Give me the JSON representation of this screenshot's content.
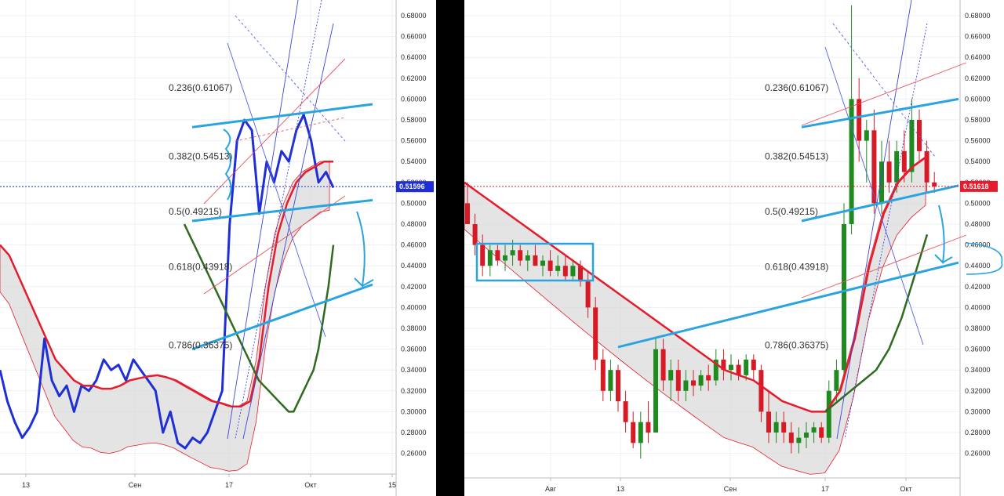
{
  "chart_data": [
    {
      "type": "line",
      "title": "",
      "xlabel": "",
      "ylabel": "",
      "ylim": [
        0.25,
        0.69
      ],
      "x_ticks": [
        "13",
        "Сен",
        "17",
        "Окт",
        "15"
      ],
      "y_ticks": [
        "0.68000",
        "0.66000",
        "0.64000",
        "0.62000",
        "0.60000",
        "0.58000",
        "0.56000",
        "0.54000",
        "0.52000",
        "0.50000",
        "0.48000",
        "0.46000",
        "0.44000",
        "0.42000",
        "0.40000",
        "0.38000",
        "0.36000",
        "0.34000",
        "0.32000",
        "0.30000",
        "0.28000",
        "0.26000"
      ],
      "last_price": {
        "label": "0.51596",
        "value": 0.51596,
        "color": "#1e2fd8"
      },
      "fib_levels": [
        {
          "label": "0.236(0.61067)",
          "value": 0.61067
        },
        {
          "label": "0.382(0.54513)",
          "value": 0.54513
        },
        {
          "label": "0.5(0.49215)",
          "value": 0.49215
        },
        {
          "label": "0.618(0.43918)",
          "value": 0.43918
        },
        {
          "label": "0.786(0.36375)",
          "value": 0.36375
        }
      ],
      "series": [
        {
          "values": [
            0.34,
            0.31,
            0.29,
            0.275,
            0.285,
            0.3,
            0.37,
            0.33,
            0.315,
            0.325,
            0.3,
            0.325,
            0.32,
            0.33,
            0.35,
            0.34,
            0.345,
            0.33,
            0.35,
            0.34,
            0.33,
            0.32,
            0.28,
            0.3,
            0.27,
            0.265,
            0.275,
            0.27,
            0.28,
            0.3,
            0.32,
            0.48,
            0.56,
            0.58,
            0.57,
            0.49,
            0.54,
            0.52,
            0.55,
            0.54,
            0.57,
            0.585,
            0.56,
            0.52,
            0.53,
            0.515
          ],
          "color": "#1e2fd8"
        },
        {
          "values": [
            0.46,
            0.45,
            0.43,
            0.41,
            0.39,
            0.37,
            0.35,
            0.34,
            0.33,
            0.325,
            0.325,
            0.322,
            0.322,
            0.325,
            0.33,
            0.332,
            0.334,
            0.335,
            0.333,
            0.33,
            0.325,
            0.32,
            0.315,
            0.31,
            0.308,
            0.305,
            0.305,
            0.31,
            0.35,
            0.42,
            0.47,
            0.5,
            0.52,
            0.53,
            0.535,
            0.54,
            0.54
          ],
          "color": "#e51c2c"
        },
        {
          "values": [
            0.48,
            0.47,
            0.46,
            0.45,
            0.44,
            0.43,
            0.42,
            0.41,
            0.4,
            0.39,
            0.38,
            0.37,
            0.36,
            0.35,
            0.34,
            0.33,
            0.325,
            0.32,
            0.315,
            0.31,
            0.305,
            0.3,
            0.3,
            0.31,
            0.32,
            0.33,
            0.34,
            0.36,
            0.39,
            0.42,
            0.46
          ],
          "color": "#2e6b1f"
        }
      ]
    },
    {
      "type": "candlestick",
      "title": "",
      "xlabel": "",
      "ylabel": "",
      "ylim": [
        0.25,
        0.69
      ],
      "x_ticks": [
        "Авг",
        "13",
        "Сен",
        "17",
        "Окт"
      ],
      "y_ticks": [
        "0.68000",
        "0.66000",
        "0.64000",
        "0.62000",
        "0.60000",
        "0.58000",
        "0.56000",
        "0.54000",
        "0.52000",
        "0.50000",
        "0.48000",
        "0.46000",
        "0.44000",
        "0.42000",
        "0.40000",
        "0.38000",
        "0.36000",
        "0.34000",
        "0.32000",
        "0.30000",
        "0.28000",
        "0.26000"
      ],
      "last_price": {
        "label": "0.51618",
        "value": 0.51618,
        "color": "#e51c2c"
      },
      "fib_levels": [
        {
          "label": "0.236(0.61067)",
          "value": 0.61067
        },
        {
          "label": "0.382(0.54513)",
          "value": 0.54513
        },
        {
          "label": "0.5(0.49215)",
          "value": 0.49215
        },
        {
          "label": "0.618(0.43918)",
          "value": 0.43918
        },
        {
          "label": "0.786(0.36375)",
          "value": 0.36375
        }
      ],
      "candles": [
        {
          "o": 0.5,
          "h": 0.52,
          "l": 0.48,
          "c": 0.48
        },
        {
          "o": 0.48,
          "h": 0.49,
          "l": 0.45,
          "c": 0.46
        },
        {
          "o": 0.46,
          "h": 0.47,
          "l": 0.43,
          "c": 0.44
        },
        {
          "o": 0.44,
          "h": 0.46,
          "l": 0.43,
          "c": 0.455
        },
        {
          "o": 0.455,
          "h": 0.46,
          "l": 0.44,
          "c": 0.445
        },
        {
          "o": 0.445,
          "h": 0.46,
          "l": 0.435,
          "c": 0.45
        },
        {
          "o": 0.45,
          "h": 0.465,
          "l": 0.44,
          "c": 0.455
        },
        {
          "o": 0.455,
          "h": 0.46,
          "l": 0.44,
          "c": 0.445
        },
        {
          "o": 0.445,
          "h": 0.455,
          "l": 0.435,
          "c": 0.45
        },
        {
          "o": 0.45,
          "h": 0.46,
          "l": 0.44,
          "c": 0.44
        },
        {
          "o": 0.44,
          "h": 0.45,
          "l": 0.43,
          "c": 0.445
        },
        {
          "o": 0.445,
          "h": 0.455,
          "l": 0.43,
          "c": 0.435
        },
        {
          "o": 0.435,
          "h": 0.45,
          "l": 0.43,
          "c": 0.44
        },
        {
          "o": 0.44,
          "h": 0.45,
          "l": 0.425,
          "c": 0.43
        },
        {
          "o": 0.43,
          "h": 0.445,
          "l": 0.425,
          "c": 0.44
        },
        {
          "o": 0.44,
          "h": 0.445,
          "l": 0.42,
          "c": 0.425
        },
        {
          "o": 0.425,
          "h": 0.435,
          "l": 0.39,
          "c": 0.4
        },
        {
          "o": 0.4,
          "h": 0.41,
          "l": 0.34,
          "c": 0.35
        },
        {
          "o": 0.35,
          "h": 0.36,
          "l": 0.31,
          "c": 0.32
        },
        {
          "o": 0.32,
          "h": 0.35,
          "l": 0.31,
          "c": 0.34
        },
        {
          "o": 0.34,
          "h": 0.345,
          "l": 0.3,
          "c": 0.31
        },
        {
          "o": 0.31,
          "h": 0.32,
          "l": 0.28,
          "c": 0.29
        },
        {
          "o": 0.29,
          "h": 0.3,
          "l": 0.265,
          "c": 0.27
        },
        {
          "o": 0.27,
          "h": 0.3,
          "l": 0.255,
          "c": 0.29
        },
        {
          "o": 0.29,
          "h": 0.31,
          "l": 0.27,
          "c": 0.28
        },
        {
          "o": 0.28,
          "h": 0.37,
          "l": 0.28,
          "c": 0.36
        },
        {
          "o": 0.36,
          "h": 0.37,
          "l": 0.32,
          "c": 0.33
        },
        {
          "o": 0.33,
          "h": 0.35,
          "l": 0.31,
          "c": 0.34
        },
        {
          "o": 0.34,
          "h": 0.35,
          "l": 0.31,
          "c": 0.32
        },
        {
          "o": 0.32,
          "h": 0.34,
          "l": 0.31,
          "c": 0.33
        },
        {
          "o": 0.33,
          "h": 0.34,
          "l": 0.315,
          "c": 0.325
        },
        {
          "o": 0.325,
          "h": 0.34,
          "l": 0.32,
          "c": 0.335
        },
        {
          "o": 0.335,
          "h": 0.345,
          "l": 0.32,
          "c": 0.33
        },
        {
          "o": 0.33,
          "h": 0.36,
          "l": 0.325,
          "c": 0.35
        },
        {
          "o": 0.35,
          "h": 0.36,
          "l": 0.33,
          "c": 0.34
        },
        {
          "o": 0.34,
          "h": 0.355,
          "l": 0.33,
          "c": 0.345
        },
        {
          "o": 0.345,
          "h": 0.35,
          "l": 0.33,
          "c": 0.335
        },
        {
          "o": 0.335,
          "h": 0.355,
          "l": 0.33,
          "c": 0.35
        },
        {
          "o": 0.35,
          "h": 0.355,
          "l": 0.33,
          "c": 0.34
        },
        {
          "o": 0.34,
          "h": 0.345,
          "l": 0.29,
          "c": 0.3
        },
        {
          "o": 0.3,
          "h": 0.32,
          "l": 0.27,
          "c": 0.28
        },
        {
          "o": 0.28,
          "h": 0.3,
          "l": 0.27,
          "c": 0.29
        },
        {
          "o": 0.29,
          "h": 0.3,
          "l": 0.27,
          "c": 0.28
        },
        {
          "o": 0.28,
          "h": 0.29,
          "l": 0.26,
          "c": 0.27
        },
        {
          "o": 0.27,
          "h": 0.285,
          "l": 0.26,
          "c": 0.275
        },
        {
          "o": 0.275,
          "h": 0.29,
          "l": 0.265,
          "c": 0.28
        },
        {
          "o": 0.28,
          "h": 0.29,
          "l": 0.27,
          "c": 0.285
        },
        {
          "o": 0.285,
          "h": 0.29,
          "l": 0.27,
          "c": 0.275
        },
        {
          "o": 0.275,
          "h": 0.33,
          "l": 0.27,
          "c": 0.32
        },
        {
          "o": 0.32,
          "h": 0.35,
          "l": 0.31,
          "c": 0.34
        },
        {
          "o": 0.34,
          "h": 0.5,
          "l": 0.33,
          "c": 0.48
        },
        {
          "o": 0.48,
          "h": 0.69,
          "l": 0.47,
          "c": 0.6
        },
        {
          "o": 0.6,
          "h": 0.62,
          "l": 0.54,
          "c": 0.56
        },
        {
          "o": 0.56,
          "h": 0.58,
          "l": 0.52,
          "c": 0.57
        },
        {
          "o": 0.57,
          "h": 0.59,
          "l": 0.49,
          "c": 0.5
        },
        {
          "o": 0.5,
          "h": 0.56,
          "l": 0.49,
          "c": 0.54
        },
        {
          "o": 0.54,
          "h": 0.56,
          "l": 0.51,
          "c": 0.52
        },
        {
          "o": 0.52,
          "h": 0.56,
          "l": 0.51,
          "c": 0.55
        },
        {
          "o": 0.55,
          "h": 0.57,
          "l": 0.52,
          "c": 0.53
        },
        {
          "o": 0.53,
          "h": 0.6,
          "l": 0.52,
          "c": 0.58
        },
        {
          "o": 0.58,
          "h": 0.59,
          "l": 0.54,
          "c": 0.55
        },
        {
          "o": 0.55,
          "h": 0.56,
          "l": 0.51,
          "c": 0.52
        },
        {
          "o": 0.52,
          "h": 0.53,
          "l": 0.51,
          "c": 0.516
        }
      ],
      "series": [
        {
          "values": [
            0.52,
            0.51,
            0.5,
            0.49,
            0.48,
            0.47,
            0.46,
            0.45,
            0.44,
            0.43,
            0.42,
            0.41,
            0.4,
            0.39,
            0.38,
            0.37,
            0.36,
            0.35,
            0.34,
            0.335,
            0.33,
            0.32,
            0.31,
            0.305,
            0.3,
            0.3,
            0.32,
            0.37,
            0.44,
            0.49,
            0.52,
            0.535,
            0.545
          ],
          "color": "#e51c2c"
        },
        {
          "values": [
            0.3,
            0.31,
            0.32,
            0.33,
            0.34,
            0.36,
            0.39,
            0.43,
            0.47
          ],
          "color": "#2e6b1f"
        }
      ]
    }
  ]
}
